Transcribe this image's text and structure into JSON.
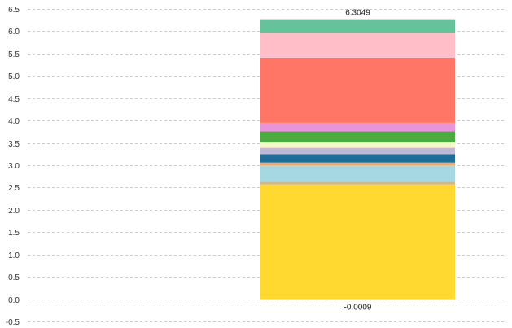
{
  "chart_data": {
    "type": "bar",
    "stacked": true,
    "grid": true,
    "ylim": [
      -0.5,
      6.5
    ],
    "y_ticks": [
      "-0.5",
      "0.0",
      "0.5",
      "1.0",
      "1.5",
      "2.0",
      "2.5",
      "3.0",
      "3.5",
      "4.0",
      "4.5",
      "5.0",
      "5.5",
      "6.0",
      "6.5"
    ],
    "top_label": "6.3049",
    "bottom_label": "-0.0009",
    "segments": [
      {
        "value": 2.57,
        "color": "#FFD92F"
      },
      {
        "value": 0.06,
        "color": "#D9B380"
      },
      {
        "value": 0.37,
        "color": "#A6D8E2"
      },
      {
        "value": 0.06,
        "color": "#E8A87C"
      },
      {
        "value": 0.19,
        "color": "#1F6E99"
      },
      {
        "value": 0.14,
        "color": "#BDBBD7"
      },
      {
        "value": 0.12,
        "color": "#F9F4CC"
      },
      {
        "value": 0.25,
        "color": "#4DAA3F"
      },
      {
        "value": 0.19,
        "color": "#E893DA"
      },
      {
        "value": 1.46,
        "color": "#FF7566"
      },
      {
        "value": 0.56,
        "color": "#FFBEC8"
      },
      {
        "value": 0.3,
        "color": "#66C29B"
      }
    ]
  }
}
